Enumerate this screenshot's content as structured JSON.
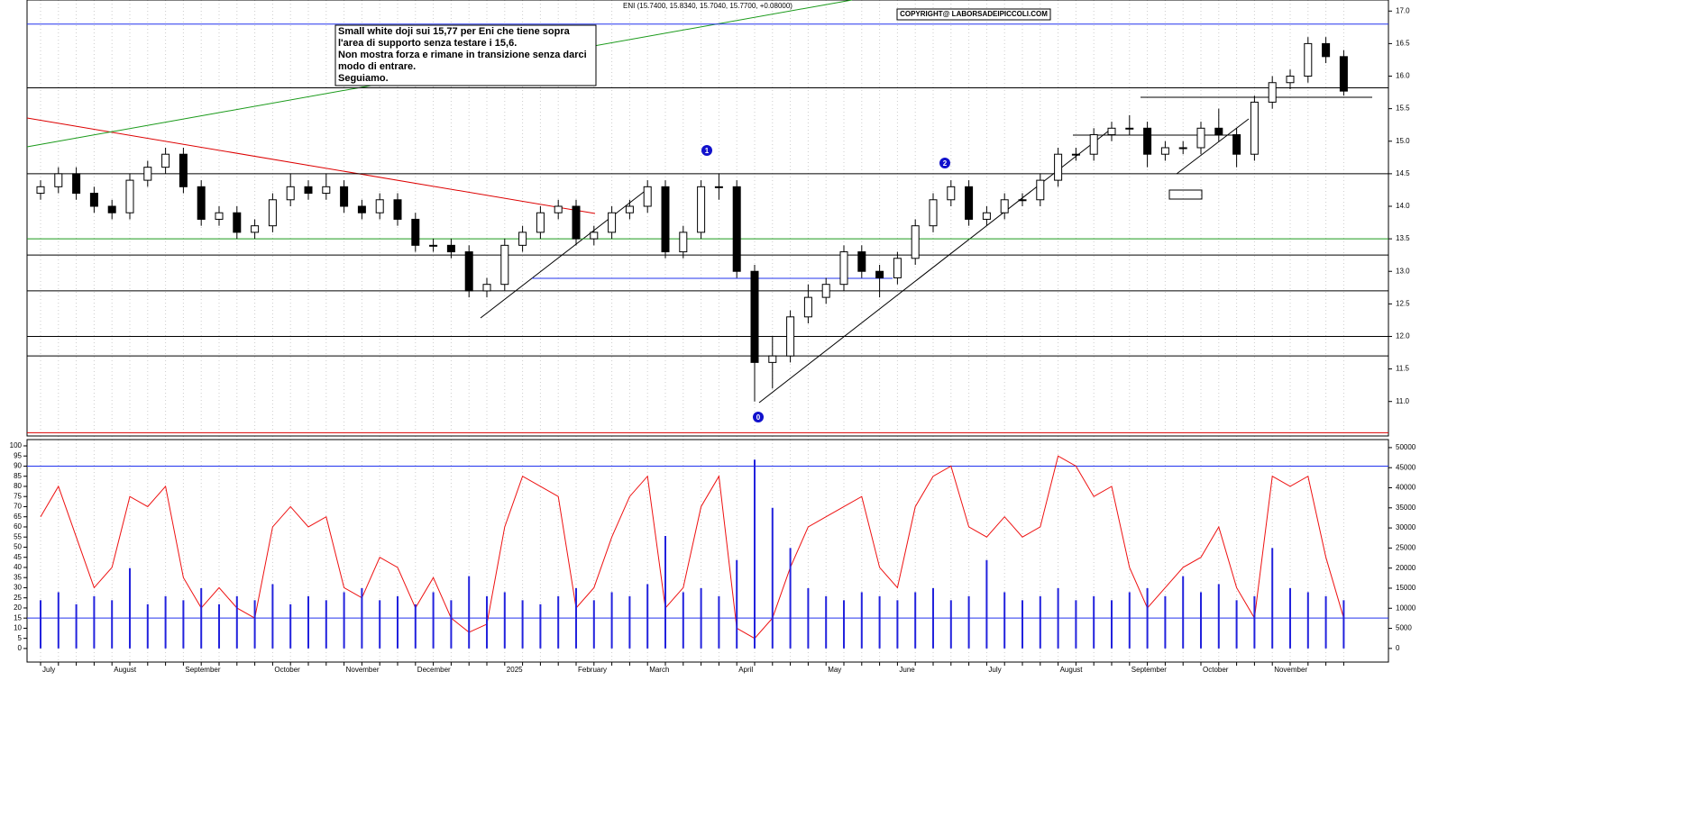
{
  "chart_data": [
    {
      "type": "candlestick",
      "title": "ENI (15.7400, 15.8340, 15.7040, 15.7700, +0.08000)",
      "copyright": "COPYRIGHT@ LABORSADEIPICCOLI.COM",
      "annotation": [
        "Small white doji sui 15,77 per Eni che tiene sopra",
        "l'area di supporto senza testare i 15,6.",
        "Non mostra forza e rimane in transizione senza darci",
        "modo di entrare.",
        "Seguiamo."
      ],
      "markers": [
        "0",
        "1",
        "2"
      ],
      "categories": [
        "July",
        null,
        null,
        null,
        "August",
        null,
        null,
        null,
        "September",
        null,
        null,
        null,
        null,
        "October",
        null,
        null,
        null,
        "November",
        null,
        null,
        null,
        "December",
        null,
        null,
        null,
        null,
        "2025",
        null,
        null,
        null,
        "February",
        null,
        null,
        null,
        "March",
        null,
        null,
        null,
        null,
        "April",
        null,
        null,
        null,
        null,
        "May",
        null,
        null,
        null,
        "June",
        null,
        null,
        null,
        null,
        "July",
        null,
        null,
        null,
        "August",
        null,
        null,
        null,
        "September",
        null,
        null,
        null,
        "October",
        null,
        null,
        null,
        "November",
        null,
        null,
        null,
        null
      ],
      "open": [
        14.2,
        14.3,
        14.5,
        14.2,
        14.0,
        13.9,
        14.4,
        14.6,
        14.8,
        14.3,
        13.8,
        13.9,
        13.6,
        13.7,
        14.1,
        14.3,
        14.2,
        14.3,
        14.0,
        13.9,
        14.1,
        13.8,
        13.4,
        13.4,
        13.3,
        12.7,
        12.8,
        13.4,
        13.6,
        13.9,
        14.0,
        13.5,
        13.6,
        13.9,
        14.0,
        14.3,
        13.3,
        13.6,
        14.3,
        14.3,
        13.0,
        11.6,
        11.7,
        12.3,
        12.6,
        12.8,
        13.3,
        13.0,
        12.9,
        13.2,
        13.7,
        14.1,
        14.3,
        13.8,
        13.9,
        14.1,
        14.1,
        14.4,
        14.8,
        14.8,
        15.1,
        15.2,
        15.2,
        14.8,
        14.9,
        14.9,
        15.2,
        15.1,
        14.8,
        15.6,
        15.9,
        16.0,
        16.5,
        16.3
      ],
      "high": [
        14.4,
        14.6,
        14.6,
        14.3,
        14.1,
        14.5,
        14.7,
        14.9,
        14.9,
        14.4,
        14.0,
        14.0,
        13.8,
        14.2,
        14.5,
        14.4,
        14.5,
        14.4,
        14.1,
        14.2,
        14.2,
        13.9,
        13.5,
        13.5,
        13.4,
        12.9,
        13.5,
        13.7,
        14.0,
        14.1,
        14.1,
        13.7,
        14.0,
        14.1,
        14.4,
        14.4,
        13.7,
        14.4,
        14.5,
        14.4,
        13.1,
        12.0,
        12.4,
        12.8,
        12.9,
        13.4,
        13.4,
        13.1,
        13.3,
        13.8,
        14.2,
        14.4,
        14.4,
        14.0,
        14.2,
        14.2,
        14.5,
        14.9,
        14.9,
        15.2,
        15.3,
        15.4,
        15.3,
        15.0,
        15.0,
        15.3,
        15.5,
        15.2,
        15.7,
        16.0,
        16.1,
        16.6,
        16.6,
        16.4
      ],
      "low": [
        14.1,
        14.2,
        14.1,
        13.9,
        13.8,
        13.8,
        14.3,
        14.5,
        14.2,
        13.7,
        13.7,
        13.5,
        13.5,
        13.6,
        14.0,
        14.1,
        14.1,
        13.9,
        13.8,
        13.8,
        13.7,
        13.3,
        13.3,
        13.2,
        12.6,
        12.6,
        12.7,
        13.3,
        13.5,
        13.8,
        13.4,
        13.4,
        13.5,
        13.8,
        13.9,
        13.2,
        13.2,
        13.5,
        14.1,
        12.9,
        11.0,
        11.2,
        11.6,
        12.2,
        12.5,
        12.7,
        12.9,
        12.6,
        12.8,
        13.1,
        13.6,
        14.0,
        13.7,
        13.7,
        13.8,
        14.0,
        14.0,
        14.3,
        14.7,
        14.7,
        15.0,
        15.1,
        14.6,
        14.7,
        14.8,
        14.8,
        15.0,
        14.6,
        14.7,
        15.5,
        15.8,
        15.9,
        16.2,
        15.7
      ],
      "close": [
        14.3,
        14.5,
        14.2,
        14.0,
        13.9,
        14.4,
        14.6,
        14.8,
        14.3,
        13.8,
        13.9,
        13.6,
        13.7,
        14.1,
        14.3,
        14.2,
        14.3,
        14.0,
        13.9,
        14.1,
        13.8,
        13.4,
        13.4,
        13.3,
        12.7,
        12.8,
        13.4,
        13.6,
        13.9,
        14.0,
        13.5,
        13.6,
        13.9,
        14.0,
        14.3,
        13.3,
        13.6,
        14.3,
        14.3,
        13.0,
        11.6,
        11.7,
        12.3,
        12.6,
        12.8,
        13.3,
        13.0,
        12.9,
        13.2,
        13.7,
        14.1,
        14.3,
        13.8,
        13.9,
        14.1,
        14.1,
        14.4,
        14.8,
        14.8,
        15.1,
        15.2,
        15.2,
        14.8,
        14.9,
        14.9,
        15.2,
        15.1,
        14.8,
        15.6,
        15.9,
        16.0,
        16.5,
        16.3,
        15.77
      ],
      "levels": [
        {
          "value": 16.8,
          "color": "#2233ee"
        },
        {
          "value": 15.82,
          "color": "#000000"
        },
        {
          "value": 14.5,
          "color": "#000000"
        },
        {
          "value": 13.5,
          "color": "#1a9a1a"
        },
        {
          "value": 13.25,
          "color": "#000000"
        },
        {
          "value": 12.7,
          "color": "#000000"
        },
        {
          "value": 12.0,
          "color": "#000000"
        },
        {
          "value": 11.7,
          "color": "#000000"
        },
        {
          "value": 10.52,
          "color": "#dd0000"
        }
      ],
      "ylim": [
        10.47,
        17.17
      ],
      "yticks": [
        {
          "value": 11,
          "label": "11.0"
        },
        11.5,
        {
          "value": 12,
          "label": "12.0"
        },
        12.5,
        {
          "value": 13,
          "label": "13.0"
        },
        13.5,
        {
          "value": 14,
          "label": "14.0"
        },
        14.5,
        {
          "value": 15,
          "label": "15.0"
        },
        15.5,
        {
          "value": 16,
          "label": "16.0"
        },
        16.5,
        {
          "value": 17,
          "label": "17.0"
        }
      ]
    },
    {
      "type": "oscillator",
      "series": [
        {
          "color": "#ee1111",
          "values": [
            65,
            80,
            55,
            30,
            40,
            75,
            70,
            80,
            35,
            20,
            30,
            20,
            15,
            60,
            70,
            60,
            65,
            30,
            25,
            45,
            40,
            20,
            35,
            15,
            8,
            12,
            60,
            85,
            80,
            75,
            20,
            30,
            55,
            75,
            85,
            20,
            30,
            70,
            85,
            10,
            5,
            15,
            40,
            60,
            65,
            70,
            75,
            40,
            30,
            70,
            85,
            90,
            60,
            55,
            65,
            55,
            60,
            95,
            90,
            75,
            80,
            40,
            20,
            30,
            40,
            45,
            60,
            30,
            15,
            85,
            80,
            85,
            45,
            15
          ]
        },
        {
          "color": "#2222dd",
          "axis": "y2",
          "values": [
            12000,
            14000,
            11000,
            13000,
            12000,
            20000,
            11000,
            13000,
            12000,
            15000,
            11000,
            13000,
            12000,
            16000,
            11000,
            13000,
            12000,
            14000,
            15000,
            12000,
            13000,
            11000,
            14000,
            12000,
            18000,
            13000,
            14000,
            12000,
            11000,
            13000,
            15000,
            12000,
            14000,
            13000,
            16000,
            28000,
            14000,
            15000,
            13000,
            22000,
            47000,
            35000,
            25000,
            15000,
            13000,
            12000,
            14000,
            13000,
            12000,
            14000,
            15000,
            12000,
            13000,
            22000,
            14000,
            12000,
            13000,
            15000,
            12000,
            13000,
            12000,
            14000,
            15000,
            13000,
            18000,
            14000,
            16000,
            12000,
            13000,
            25000,
            15000,
            14000,
            13000,
            12000
          ]
        }
      ],
      "levels": [
        {
          "value": 90,
          "color": "#2233ee"
        },
        {
          "value": 15,
          "color": "#2233ee"
        }
      ],
      "ylim": [
        -6.7,
        103.1
      ],
      "yticks": [
        0,
        5,
        10,
        15,
        20,
        25,
        30,
        35,
        40,
        45,
        50,
        55,
        60,
        65,
        70,
        75,
        80,
        85,
        90,
        95,
        100
      ],
      "y2lim": [
        -3400,
        52000
      ],
      "y2ticks": [
        0,
        5000,
        10000,
        15000,
        20000,
        25000,
        30000,
        35000,
        40000,
        45000,
        50000
      ]
    }
  ]
}
